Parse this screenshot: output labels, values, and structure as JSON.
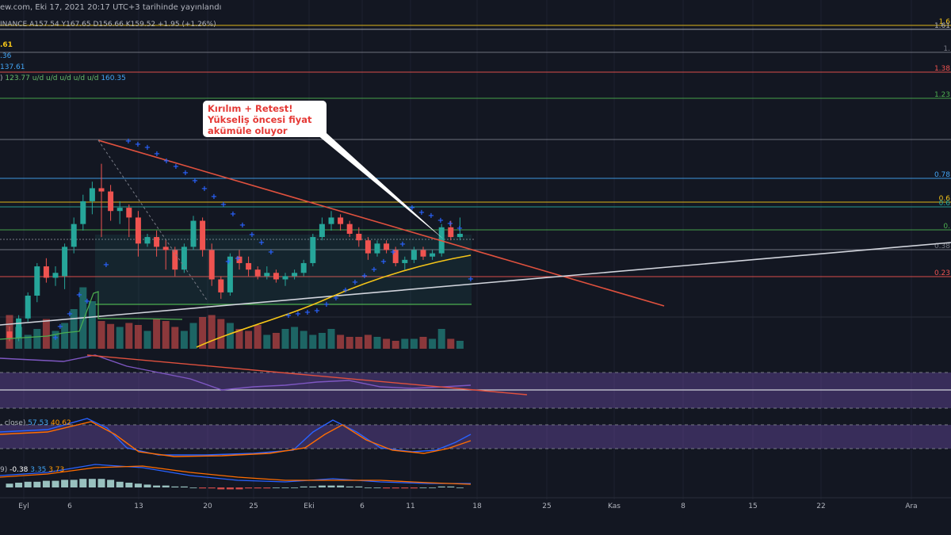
{
  "header": {
    "publish_line": "ew.com, Eki 17, 2021 20:17 UTC+3 tarihinde yayınlandı"
  },
  "legend": {
    "ohlc_line": "INANCE  A157.54  Y167.65  D156.66  K159.52  +1.95 (+1.26%)",
    "line2": ".61",
    "line3": ".36",
    "line4": "137.61",
    "line5_prefix": ")",
    "line5_value": "123.77  u/d  u/d  u/d  u/d  u/d",
    "line5_extra": "160.35",
    "rsi_label": "",
    "stoch_label": ", close)",
    "stoch_k": "57.53",
    "stoch_d": "40.62",
    "macd_label": "9)",
    "macd_hist": "-0.38",
    "macd_line": "3.35",
    "macd_signal": "3.73"
  },
  "annotation": {
    "line1": "Kırılım + Retest!",
    "line2": "Yükseliş öncesi fiyat",
    "line3": "akümüle oluyor"
  },
  "colors": {
    "background": "#131722",
    "up": "#26a69a",
    "down": "#ef5350",
    "trend_red": "#e0513e",
    "trend_white": "#d1d4dc",
    "ma_yellow": "#f5c518",
    "psar_blue": "#2962ff",
    "rsi_purple": "#7e57c2",
    "stoch_k": "#2962ff",
    "stoch_d": "#ff6d00"
  },
  "chart_data": {
    "type": "candlestick",
    "fib_levels": [
      {
        "label": "1.6",
        "color": "#f5c518"
      },
      {
        "label": "1.61",
        "color": "#b2b5be"
      },
      {
        "label": "1.",
        "color": "#787b86"
      },
      {
        "label": "1.38",
        "color": "#ef5350"
      },
      {
        "label": "1.23",
        "color": "#4caf50"
      },
      {
        "label": "",
        "color": "#787b86"
      },
      {
        "label": "0.78",
        "color": "#42a5f5"
      },
      {
        "label": "0.6",
        "color": "#f5c518"
      },
      {
        "label": "0.6",
        "color": "#26a69a"
      },
      {
        "label": "0.",
        "color": "#4caf50"
      },
      {
        "label": "0.38",
        "color": "#787b86"
      },
      {
        "label": "0.23",
        "color": "#ef5350"
      }
    ],
    "x_ticks": [
      "Eyl",
      "6",
      "13",
      "20",
      "25",
      "Eki",
      "6",
      "11",
      "18",
      "25",
      "Kas",
      "8",
      "15",
      "22",
      "Ara"
    ],
    "candles": [
      {
        "o": 92,
        "h": 95,
        "l": 86,
        "c": 88
      },
      {
        "o": 88,
        "h": 102,
        "l": 86,
        "c": 100
      },
      {
        "o": 100,
        "h": 116,
        "l": 98,
        "c": 114
      },
      {
        "o": 114,
        "h": 134,
        "l": 110,
        "c": 132
      },
      {
        "o": 132,
        "h": 137,
        "l": 122,
        "c": 125
      },
      {
        "o": 125,
        "h": 132,
        "l": 120,
        "c": 128
      },
      {
        "o": 126,
        "h": 146,
        "l": 118,
        "c": 144
      },
      {
        "o": 144,
        "h": 162,
        "l": 140,
        "c": 158
      },
      {
        "o": 158,
        "h": 176,
        "l": 154,
        "c": 172
      },
      {
        "o": 172,
        "h": 184,
        "l": 164,
        "c": 180
      },
      {
        "o": 180,
        "h": 195,
        "l": 150,
        "c": 178
      },
      {
        "o": 178,
        "h": 182,
        "l": 160,
        "c": 166
      },
      {
        "o": 166,
        "h": 172,
        "l": 158,
        "c": 168
      },
      {
        "o": 168,
        "h": 170,
        "l": 150,
        "c": 162
      },
      {
        "o": 162,
        "h": 166,
        "l": 138,
        "c": 146
      },
      {
        "o": 146,
        "h": 152,
        "l": 144,
        "c": 150
      },
      {
        "o": 150,
        "h": 154,
        "l": 138,
        "c": 144
      },
      {
        "o": 144,
        "h": 148,
        "l": 130,
        "c": 142
      },
      {
        "o": 142,
        "h": 144,
        "l": 126,
        "c": 130
      },
      {
        "o": 130,
        "h": 146,
        "l": 128,
        "c": 144
      },
      {
        "o": 144,
        "h": 163,
        "l": 142,
        "c": 160
      },
      {
        "o": 160,
        "h": 162,
        "l": 138,
        "c": 142
      },
      {
        "o": 142,
        "h": 146,
        "l": 120,
        "c": 124
      },
      {
        "o": 124,
        "h": 126,
        "l": 112,
        "c": 116
      },
      {
        "o": 116,
        "h": 140,
        "l": 114,
        "c": 138
      },
      {
        "o": 138,
        "h": 142,
        "l": 130,
        "c": 134
      },
      {
        "o": 134,
        "h": 138,
        "l": 126,
        "c": 130
      },
      {
        "o": 130,
        "h": 132,
        "l": 124,
        "c": 126
      },
      {
        "o": 126,
        "h": 132,
        "l": 124,
        "c": 128
      },
      {
        "o": 128,
        "h": 130,
        "l": 122,
        "c": 124
      },
      {
        "o": 124,
        "h": 128,
        "l": 120,
        "c": 126
      },
      {
        "o": 126,
        "h": 130,
        "l": 124,
        "c": 128
      },
      {
        "o": 128,
        "h": 136,
        "l": 126,
        "c": 134
      },
      {
        "o": 134,
        "h": 152,
        "l": 132,
        "c": 150
      },
      {
        "o": 150,
        "h": 162,
        "l": 148,
        "c": 158
      },
      {
        "o": 158,
        "h": 166,
        "l": 154,
        "c": 162
      },
      {
        "o": 162,
        "h": 164,
        "l": 154,
        "c": 158
      },
      {
        "o": 158,
        "h": 160,
        "l": 150,
        "c": 152
      },
      {
        "o": 152,
        "h": 156,
        "l": 144,
        "c": 148
      },
      {
        "o": 148,
        "h": 150,
        "l": 136,
        "c": 140
      },
      {
        "o": 140,
        "h": 148,
        "l": 138,
        "c": 146
      },
      {
        "o": 146,
        "h": 148,
        "l": 140,
        "c": 142
      },
      {
        "o": 142,
        "h": 144,
        "l": 132,
        "c": 134
      },
      {
        "o": 134,
        "h": 138,
        "l": 130,
        "c": 136
      },
      {
        "o": 136,
        "h": 144,
        "l": 134,
        "c": 142
      },
      {
        "o": 142,
        "h": 144,
        "l": 136,
        "c": 138
      },
      {
        "o": 138,
        "h": 142,
        "l": 136,
        "c": 140
      },
      {
        "o": 140,
        "h": 158,
        "l": 138,
        "c": 156
      },
      {
        "o": 156,
        "h": 160,
        "l": 148,
        "c": 150
      },
      {
        "o": 150,
        "h": 162,
        "l": 148,
        "c": 152
      }
    ],
    "volumes": [
      34,
      22,
      14,
      20,
      30,
      18,
      26,
      40,
      62,
      48,
      28,
      25,
      22,
      26,
      24,
      18,
      30,
      28,
      22,
      18,
      26,
      32,
      34,
      30,
      26,
      20,
      18,
      24,
      14,
      16,
      20,
      22,
      18,
      14,
      16,
      20,
      14,
      12,
      12,
      14,
      12,
      10,
      8,
      10,
      10,
      12,
      10,
      20,
      10,
      8
    ]
  }
}
